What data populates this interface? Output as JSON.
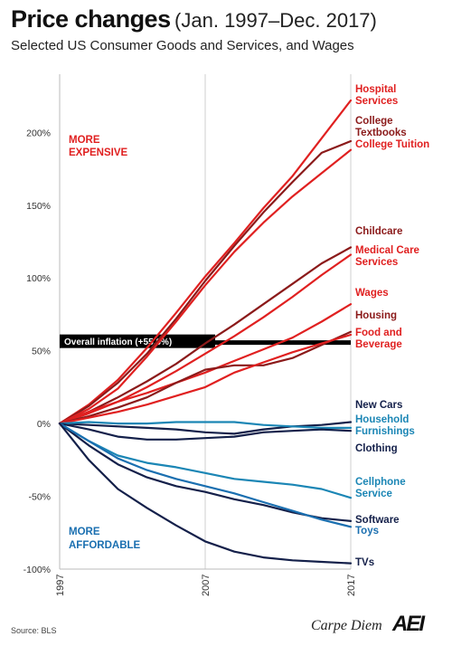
{
  "title": "Price changes",
  "title_period": "(Jan. 1997–Dec. 2017)",
  "subtitle": "Selected US Consumer Goods and Services, and Wages",
  "source": "Source: BLS",
  "brand": "Carpe Diem",
  "brand_logo": "AEI",
  "annotations": {
    "more_expensive": [
      "MORE",
      "EXPENSIVE"
    ],
    "more_affordable": [
      "MORE",
      "AFFORDABLE"
    ]
  },
  "colors": {
    "red": "#e02020",
    "dark_red": "#8b1a1a",
    "navy": "#14204a",
    "blue": "#1a6fb0",
    "teal": "#1b86b5"
  },
  "chart_data": {
    "type": "line",
    "x_tick_labels": [
      "1997",
      "2007",
      "2017"
    ],
    "x": [
      1997,
      1999,
      2001,
      2003,
      2005,
      2007,
      2009,
      2011,
      2013,
      2015,
      2017
    ],
    "ylim": [
      -100,
      240
    ],
    "y_ticks": [
      -100,
      -50,
      0,
      50,
      100,
      150,
      200
    ],
    "y_tick_labels": [
      "-100%",
      "-50%",
      "0%",
      "50%",
      "100%",
      "150%",
      "200%"
    ],
    "grid": "vertical",
    "overall_inflation": {
      "label": "Overall inflation (+55.6%)",
      "value": 55.6
    },
    "series": [
      {
        "name": "Hospital Services",
        "label_lines": [
          "Hospital",
          "Services"
        ],
        "color": "#e02020",
        "values": [
          0,
          13,
          30,
          52,
          76,
          101,
          124,
          148,
          170,
          196,
          222
        ]
      },
      {
        "name": "College Textbooks",
        "label_lines": [
          "College",
          "Textbooks"
        ],
        "color": "#8b1a1a",
        "values": [
          0,
          12,
          28,
          48,
          72,
          98,
          122,
          145,
          166,
          186,
          194
        ]
      },
      {
        "name": "College Tuition",
        "label_lines": [
          "College Tuition"
        ],
        "color": "#e02020",
        "values": [
          0,
          10,
          24,
          46,
          70,
          95,
          118,
          138,
          156,
          172,
          188
        ]
      },
      {
        "name": "Childcare",
        "label_lines": [
          "Childcare"
        ],
        "color": "#8b1a1a",
        "values": [
          0,
          8,
          18,
          29,
          41,
          55,
          68,
          82,
          96,
          110,
          121
        ]
      },
      {
        "name": "Medical Care Services",
        "label_lines": [
          "Medical Care",
          "Services"
        ],
        "color": "#e02020",
        "values": [
          0,
          7,
          15,
          25,
          36,
          48,
          60,
          73,
          87,
          102,
          116
        ]
      },
      {
        "name": "Wages",
        "label_lines": [
          "Wages"
        ],
        "color": "#e02020",
        "values": [
          0,
          8,
          15,
          21,
          28,
          35,
          43,
          51,
          59,
          70,
          82
        ]
      },
      {
        "name": "Housing",
        "label_lines": [
          "Housing"
        ],
        "color": "#8b1a1a",
        "values": [
          0,
          5,
          11,
          18,
          28,
          37,
          40,
          40,
          45,
          54,
          63
        ]
      },
      {
        "name": "Food and Beverage",
        "label_lines": [
          "Food and",
          "Beverage"
        ],
        "color": "#e02020",
        "values": [
          0,
          4,
          8,
          13,
          19,
          25,
          35,
          42,
          49,
          55,
          61
        ]
      },
      {
        "name": "New Cars",
        "label_lines": [
          "New Cars"
        ],
        "color": "#14204a",
        "values": [
          0,
          -1,
          -2,
          -3,
          -4,
          -6,
          -7,
          -4,
          -2,
          -1,
          1
        ]
      },
      {
        "name": "Household Furnishings",
        "label_lines": [
          "Household",
          "Furnishings"
        ],
        "color": "#1b86b5",
        "values": [
          0,
          1,
          0,
          0,
          1,
          1,
          1,
          -1,
          -2,
          -3,
          -3
        ]
      },
      {
        "name": "Clothing",
        "label_lines": [
          "Clothing"
        ],
        "color": "#14204a",
        "values": [
          0,
          -4,
          -9,
          -11,
          -11,
          -10,
          -9,
          -6,
          -5,
          -4,
          -5
        ]
      },
      {
        "name": "Cellphone Service",
        "label_lines": [
          "Cellphone",
          "Service"
        ],
        "color": "#1b86b5",
        "values": [
          0,
          -12,
          -22,
          -27,
          -30,
          -34,
          -38,
          -40,
          -42,
          -45,
          -51
        ]
      },
      {
        "name": "Software",
        "label_lines": [
          "Software"
        ],
        "color": "#14204a",
        "values": [
          0,
          -15,
          -28,
          -37,
          -43,
          -47,
          -52,
          -56,
          -61,
          -65,
          -67
        ]
      },
      {
        "name": "Toys",
        "label_lines": [
          "Toys"
        ],
        "color": "#1a6fb0",
        "values": [
          0,
          -12,
          -24,
          -32,
          -38,
          -43,
          -48,
          -54,
          -60,
          -66,
          -71
        ]
      },
      {
        "name": "TVs",
        "label_lines": [
          "TVs"
        ],
        "color": "#14204a",
        "values": [
          0,
          -25,
          -45,
          -58,
          -70,
          -81,
          -88,
          -92,
          -94,
          -95,
          -96
        ]
      }
    ]
  }
}
